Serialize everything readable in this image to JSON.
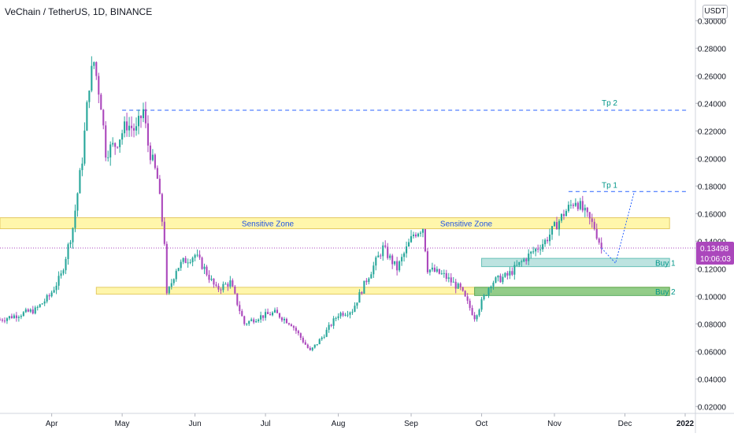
{
  "header": {
    "title": "VeChain / TetherUS, 1D, BINANCE",
    "currency": "USDT"
  },
  "price_tag": {
    "price": "0.13498",
    "countdown": "10:06:03"
  },
  "annotations": {
    "sensitive_zone_left": "Sensitive Zone",
    "sensitive_zone_right": "Sensitive Zone",
    "tp1": "Tp 1",
    "tp2": "Tp 2",
    "buy1": "Buy 1",
    "buy2": "Buy 2"
  },
  "colors": {
    "up": "#26a69a",
    "down": "#ab47bc",
    "zone_yellow": "#fff59d",
    "buy1_fill": "#b2dfdb",
    "buy2_fill": "#81c784",
    "dashed_line": "#2962ff",
    "label_teal": "#009688",
    "price_tag": "#ab47bc"
  },
  "chart_data": {
    "type": "candlestick",
    "title": "VeChain / TetherUS, 1D, BINANCE",
    "y_ticks": [
      "0.30000",
      "0.28000",
      "0.26000",
      "0.24000",
      "0.22000",
      "0.20000",
      "0.18000",
      "0.16000",
      "0.14000",
      "0.12000",
      "0.10000",
      "0.08000",
      "0.06000",
      "0.04000",
      "0.02000"
    ],
    "x_ticks": [
      "Apr",
      "May",
      "Jun",
      "Jul",
      "Aug",
      "Sep",
      "Oct",
      "Nov",
      "Dec",
      "2022"
    ],
    "ylim": [
      0.015,
      0.315
    ],
    "date_range": [
      "2021-03-10",
      "2021-12-31"
    ],
    "current_price": 0.13498,
    "zones": [
      {
        "label": "Sensitive Zone",
        "from": "2021-03-10",
        "to": "2021-12-20",
        "low": 0.149,
        "high": 0.157
      },
      {
        "label": "",
        "from": "2021-04-20",
        "to": "2021-12-20",
        "low": 0.1015,
        "high": 0.1065
      },
      {
        "label": "Buy 1",
        "from": "2021-10-01",
        "to": "2021-12-20",
        "low": 0.1215,
        "high": 0.1275
      },
      {
        "label": "Buy 2",
        "from": "2021-09-28",
        "to": "2021-12-20",
        "low": 0.1005,
        "high": 0.1065
      }
    ],
    "targets": [
      {
        "label": "Tp 1",
        "value": 0.176,
        "from": "2021-11-07",
        "to": "2021-12-28"
      },
      {
        "label": "Tp 2",
        "value": 0.235,
        "from": "2021-05-01",
        "to": "2021-12-28"
      }
    ],
    "anchors": [
      [
        "2021-03-10",
        0.083
      ],
      [
        "2021-03-25",
        0.09
      ],
      [
        "2021-03-31",
        0.1
      ],
      [
        "2021-04-05",
        0.115
      ],
      [
        "2021-04-10",
        0.15
      ],
      [
        "2021-04-14",
        0.2
      ],
      [
        "2021-04-17",
        0.255
      ],
      [
        "2021-04-19",
        0.27
      ],
      [
        "2021-04-22",
        0.24
      ],
      [
        "2021-04-24",
        0.205
      ],
      [
        "2021-04-28",
        0.21
      ],
      [
        "2021-05-03",
        0.225
      ],
      [
        "2021-05-07",
        0.22
      ],
      [
        "2021-05-10",
        0.235
      ],
      [
        "2021-05-12",
        0.21
      ],
      [
        "2021-05-16",
        0.185
      ],
      [
        "2021-05-19",
        0.14
      ],
      [
        "2021-05-20",
        0.1
      ],
      [
        "2021-05-24",
        0.12
      ],
      [
        "2021-05-27",
        0.125
      ],
      [
        "2021-06-01",
        0.13
      ],
      [
        "2021-06-05",
        0.12
      ],
      [
        "2021-06-10",
        0.105
      ],
      [
        "2021-06-16",
        0.11
      ],
      [
        "2021-06-22",
        0.08
      ],
      [
        "2021-06-28",
        0.085
      ],
      [
        "2021-07-05",
        0.088
      ],
      [
        "2021-07-12",
        0.08
      ],
      [
        "2021-07-20",
        0.06
      ],
      [
        "2021-07-25",
        0.07
      ],
      [
        "2021-08-01",
        0.087
      ],
      [
        "2021-08-07",
        0.09
      ],
      [
        "2021-08-13",
        0.112
      ],
      [
        "2021-08-20",
        0.135
      ],
      [
        "2021-08-26",
        0.12
      ],
      [
        "2021-09-02",
        0.145
      ],
      [
        "2021-09-06",
        0.15
      ],
      [
        "2021-09-08",
        0.12
      ],
      [
        "2021-09-15",
        0.115
      ],
      [
        "2021-09-22",
        0.105
      ],
      [
        "2021-09-28",
        0.085
      ],
      [
        "2021-10-05",
        0.11
      ],
      [
        "2021-10-12",
        0.115
      ],
      [
        "2021-10-20",
        0.128
      ],
      [
        "2021-10-28",
        0.14
      ],
      [
        "2021-11-05",
        0.16
      ],
      [
        "2021-11-10",
        0.17
      ],
      [
        "2021-11-14",
        0.16
      ],
      [
        "2021-11-18",
        0.15
      ],
      [
        "2021-11-21",
        0.135
      ]
    ],
    "forecast_path": [
      [
        "2021-11-21",
        0.135
      ],
      [
        "2021-11-27",
        0.124
      ],
      [
        "2021-12-05",
        0.176
      ]
    ]
  }
}
